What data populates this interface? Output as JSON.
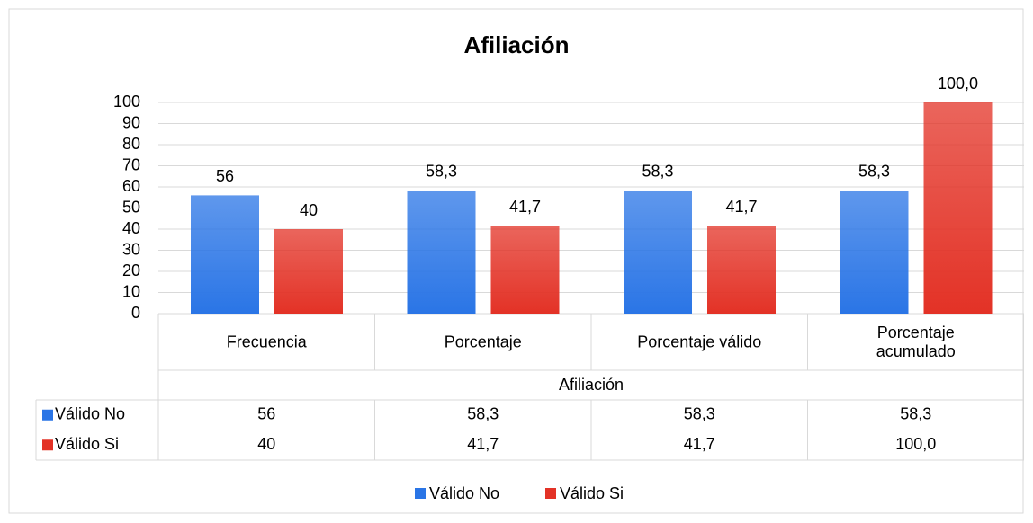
{
  "chart_data": {
    "type": "bar",
    "title": "Afiliación",
    "categories": [
      "Frecuencia",
      "Porcentaje",
      "Porcentaje válido",
      "Porcentaje acumulado"
    ],
    "xlabel": "Afiliación",
    "series": [
      {
        "name": "Válido No",
        "color": "#2a75e6",
        "values": [
          56,
          58.3,
          58.3,
          58.3
        ],
        "value_labels": [
          "56",
          "58,3",
          "58,3",
          "58,3"
        ]
      },
      {
        "name": "Válido Si",
        "color": "#e33226",
        "values": [
          40,
          41.7,
          41.7,
          100
        ],
        "value_labels": [
          "40",
          "41,7",
          "41,7",
          "100,0"
        ]
      }
    ],
    "ylim": [
      0,
      100
    ],
    "yticks": [
      0,
      10,
      20,
      30,
      40,
      50,
      60,
      70,
      80,
      90,
      100
    ],
    "grid": true,
    "legend": "bottom",
    "data_table": true
  }
}
